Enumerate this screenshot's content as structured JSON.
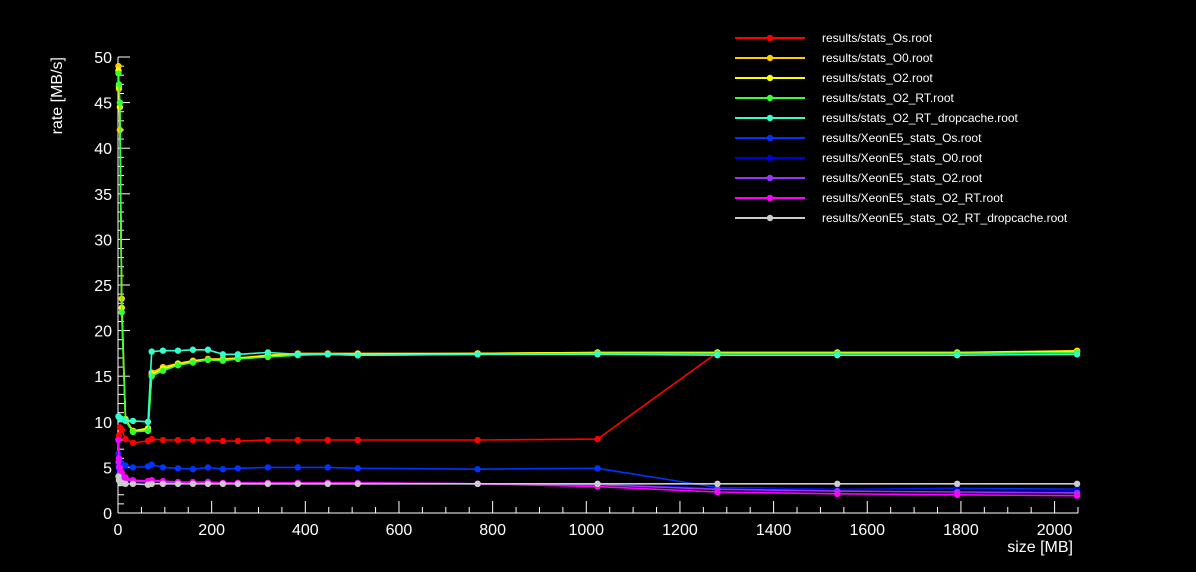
{
  "chart_data": {
    "type": "line",
    "title": "",
    "xlabel": "size [MB]",
    "ylabel": "rate [MB/s]",
    "xlim": [
      0,
      2050
    ],
    "ylim": [
      0,
      50
    ],
    "x_ticks": [
      0,
      200,
      400,
      600,
      800,
      1000,
      1200,
      1400,
      1600,
      1800,
      2000
    ],
    "y_ticks": [
      0,
      5,
      10,
      15,
      20,
      25,
      30,
      35,
      40,
      45,
      50
    ],
    "background": "#000000",
    "axis_color": "#ffffff",
    "grid": false,
    "legend_position": "top-right",
    "series": [
      {
        "name": "results/stats_Os.root",
        "color": "#ff0000",
        "x": [
          1,
          2,
          4,
          8,
          16,
          32,
          64,
          72,
          96,
          128,
          160,
          192,
          224,
          256,
          320,
          384,
          448,
          512,
          768,
          1024,
          1280,
          1536,
          1792,
          2048
        ],
        "y": [
          8.1,
          8.5,
          9.4,
          9.1,
          8.1,
          7.7,
          7.9,
          8.1,
          8.0,
          8.0,
          8.0,
          8.0,
          7.9,
          7.9,
          8.0,
          8.0,
          8.0,
          8.0,
          8.0,
          8.1,
          17.6,
          17.6,
          17.6,
          17.6
        ]
      },
      {
        "name": "results/stats_O0.root",
        "color": "#ffcc00",
        "x": [
          1,
          2,
          4,
          8,
          16,
          32,
          64,
          72,
          96,
          128,
          160,
          192,
          224,
          256,
          320,
          384,
          448,
          512,
          768,
          1024,
          1280,
          1536,
          1792,
          2048
        ],
        "y": [
          49.0,
          46.5,
          42.0,
          23.5,
          10.2,
          9.0,
          9.3,
          15.4,
          16.0,
          16.4,
          16.7,
          16.9,
          16.9,
          17.0,
          17.3,
          17.5,
          17.5,
          17.5,
          17.5,
          17.6,
          17.6,
          17.6,
          17.6,
          17.8
        ]
      },
      {
        "name": "results/stats_O2.root",
        "color": "#ffff00",
        "x": [
          1,
          2,
          4,
          8,
          16,
          32,
          64,
          72,
          96,
          128,
          160,
          192,
          224,
          256,
          320,
          384,
          448,
          512,
          768,
          1024,
          1280,
          1536,
          1792,
          2048
        ],
        "y": [
          48.5,
          46.8,
          44.5,
          22.5,
          10.3,
          9.0,
          9.2,
          15.2,
          15.8,
          16.3,
          16.6,
          16.8,
          16.8,
          17.0,
          17.2,
          17.4,
          17.4,
          17.4,
          17.5,
          17.6,
          17.6,
          17.6,
          17.6,
          17.7
        ]
      },
      {
        "name": "results/stats_O2_RT.root",
        "color": "#33ff33",
        "x": [
          1,
          2,
          4,
          8,
          16,
          32,
          64,
          72,
          96,
          128,
          160,
          192,
          224,
          256,
          320,
          384,
          448,
          512,
          768,
          1024,
          1280,
          1536,
          1792,
          2048
        ],
        "y": [
          48.2,
          47.0,
          45.0,
          22.0,
          10.1,
          8.9,
          9.0,
          15.0,
          15.6,
          16.2,
          16.5,
          16.8,
          16.7,
          16.9,
          17.1,
          17.3,
          17.4,
          17.3,
          17.4,
          17.5,
          17.5,
          17.5,
          17.5,
          17.6
        ]
      },
      {
        "name": "results/stats_O2_RT_dropcache.root",
        "color": "#33ffcc",
        "x": [
          1,
          2,
          4,
          8,
          16,
          32,
          64,
          72,
          96,
          128,
          160,
          192,
          224,
          256,
          320,
          384,
          448,
          512,
          768,
          1024,
          1280,
          1536,
          1792,
          2048
        ],
        "y": [
          10.6,
          10.5,
          10.4,
          10.3,
          10.2,
          10.1,
          10.0,
          17.7,
          17.8,
          17.8,
          17.9,
          17.9,
          17.4,
          17.4,
          17.6,
          17.4,
          17.4,
          17.3,
          17.4,
          17.4,
          17.3,
          17.3,
          17.3,
          17.4
        ]
      },
      {
        "name": "results/XeonE5_stats_Os.root",
        "color": "#0033ff",
        "x": [
          1,
          2,
          4,
          8,
          16,
          32,
          64,
          72,
          96,
          128,
          160,
          192,
          224,
          256,
          320,
          384,
          448,
          512,
          768,
          1024,
          1280,
          1536,
          1792,
          2048
        ],
        "y": [
          6.5,
          6.0,
          5.6,
          5.4,
          5.2,
          5.0,
          5.1,
          5.3,
          5.0,
          4.9,
          4.8,
          5.0,
          4.8,
          4.9,
          5.0,
          5.0,
          5.0,
          4.9,
          4.8,
          4.9,
          2.8,
          2.6,
          2.7,
          2.6
        ]
      },
      {
        "name": "results/XeonE5_stats_O0.root",
        "color": "#0000dd",
        "x": [
          1,
          2,
          4,
          8,
          16,
          32,
          64,
          72,
          96,
          128,
          160,
          192,
          224,
          256,
          320,
          384,
          448,
          512,
          768,
          1024,
          1280,
          1536,
          1792,
          2048
        ],
        "y": [
          5.2,
          4.8,
          4.3,
          4.0,
          3.8,
          3.5,
          3.4,
          3.5,
          3.4,
          3.3,
          3.3,
          3.4,
          3.3,
          3.3,
          3.3,
          3.3,
          3.3,
          3.3,
          3.2,
          3.2,
          2.7,
          2.6,
          2.6,
          2.5
        ]
      },
      {
        "name": "results/XeonE5_stats_O2.root",
        "color": "#9933ff",
        "x": [
          1,
          2,
          4,
          8,
          16,
          32,
          64,
          72,
          96,
          128,
          160,
          192,
          224,
          256,
          320,
          384,
          448,
          512,
          768,
          1024,
          1280,
          1536,
          1792,
          2048
        ],
        "y": [
          5.6,
          5.0,
          4.4,
          4.0,
          3.7,
          3.5,
          3.4,
          3.5,
          3.4,
          3.3,
          3.3,
          3.4,
          3.3,
          3.3,
          3.3,
          3.3,
          3.3,
          3.3,
          3.2,
          3.1,
          2.6,
          2.4,
          2.3,
          2.2
        ]
      },
      {
        "name": "results/XeonE5_stats_O2_RT.root",
        "color": "#ff00ff",
        "x": [
          1,
          2,
          4,
          8,
          16,
          32,
          64,
          72,
          96,
          128,
          160,
          192,
          224,
          256,
          320,
          384,
          448,
          512,
          768,
          1024,
          1280,
          1536,
          1792,
          2048
        ],
        "y": [
          8.0,
          6.0,
          5.0,
          4.4,
          3.9,
          3.6,
          3.5,
          3.6,
          3.5,
          3.4,
          3.4,
          3.4,
          3.3,
          3.3,
          3.3,
          3.3,
          3.3,
          3.3,
          3.2,
          2.9,
          2.3,
          2.1,
          2.0,
          1.9
        ]
      },
      {
        "name": "results/XeonE5_stats_O2_RT_dropcache.root",
        "color": "#cccccc",
        "x": [
          1,
          2,
          4,
          8,
          16,
          32,
          64,
          72,
          96,
          128,
          160,
          192,
          224,
          256,
          320,
          384,
          448,
          512,
          768,
          1024,
          1280,
          1536,
          1792,
          2048
        ],
        "y": [
          4.0,
          3.6,
          3.4,
          3.3,
          3.2,
          3.2,
          3.1,
          3.2,
          3.2,
          3.2,
          3.2,
          3.2,
          3.2,
          3.2,
          3.2,
          3.2,
          3.2,
          3.2,
          3.2,
          3.2,
          3.2,
          3.2,
          3.2,
          3.2
        ]
      }
    ]
  }
}
